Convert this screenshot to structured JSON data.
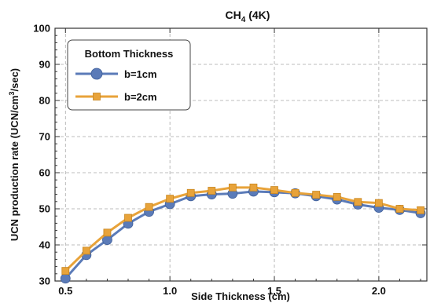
{
  "chart_data": {
    "type": "line",
    "title_main": "CH",
    "title_sub": "4",
    "title_rest": " (4K)",
    "xlabel": "Side Thickness (cm)",
    "ylabel_pre": "UCN production rate (UCN/cm",
    "ylabel_sup": "3",
    "ylabel_post": "/sec)",
    "xlim": [
      0.45,
      2.23
    ],
    "ylim": [
      30,
      100
    ],
    "xticks": [
      0.5,
      1.0,
      1.5,
      2.0
    ],
    "xtick_labels": [
      "0.5",
      "1.0",
      "1.5",
      "2.0"
    ],
    "yticks": [
      30,
      40,
      50,
      60,
      70,
      80,
      90,
      100
    ],
    "ytick_labels": [
      "30",
      "40",
      "50",
      "60",
      "70",
      "80",
      "90",
      "100"
    ],
    "grid": true,
    "legend": {
      "title": "Bottom Thickness",
      "placement": "top-left"
    },
    "x": [
      0.5,
      0.6,
      0.7,
      0.8,
      0.9,
      1.0,
      1.1,
      1.2,
      1.3,
      1.4,
      1.5,
      1.6,
      1.7,
      1.8,
      1.9,
      2.0,
      2.1,
      2.2
    ],
    "series": [
      {
        "name": "b=1cm",
        "color": "#5b7bb8",
        "marker": "circle",
        "values": [
          30.7,
          37.2,
          41.4,
          45.9,
          49.2,
          51.3,
          53.5,
          54.0,
          54.2,
          54.8,
          54.6,
          54.3,
          53.5,
          52.6,
          51.2,
          50.3,
          49.7,
          48.8
        ]
      },
      {
        "name": "b=2cm",
        "color": "#e8a33a",
        "marker": "square",
        "values": [
          32.8,
          38.4,
          43.4,
          47.5,
          50.5,
          52.8,
          54.4,
          55.0,
          55.9,
          55.9,
          55.2,
          54.4,
          53.9,
          53.3,
          51.9,
          51.6,
          50.0,
          49.6
        ]
      }
    ]
  }
}
